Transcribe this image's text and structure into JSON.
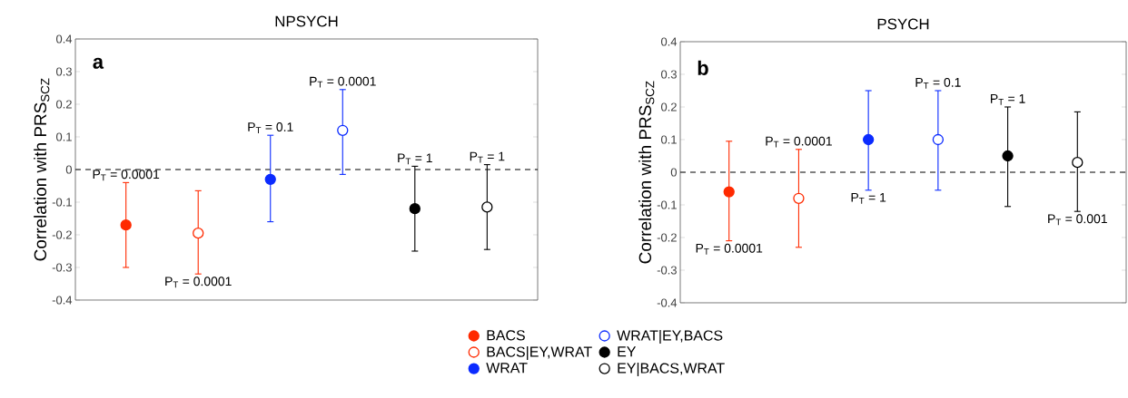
{
  "chart_data": [
    {
      "type": "scatter",
      "title": "NPSYCH",
      "ylabel": "Correlation with PRS$_{SCZ}$",
      "categories": [
        null,
        null,
        null,
        null,
        null,
        null
      ],
      "ylim": [
        -0.4,
        0.4
      ],
      "yticks": [
        -0.4,
        -0.3,
        -0.2,
        -0.1,
        0,
        0.1,
        0.2,
        0.3,
        0.4
      ],
      "marker": "circle",
      "legend": "bottom",
      "grid": false,
      "ref_lines": [
        {
          "axis": "y",
          "value": 0,
          "line_style": "dashed",
          "color": "#000000"
        }
      ],
      "annotations": [
        "a",
        "P$_{T}$ = 0.0001",
        "P$_{T}$ = 0.0001",
        "P$_{T}$ = 0.1",
        "P$_{T}$ = 0.0001",
        "P$_{T}$ = 1",
        "P$_{T}$ = 1"
      ],
      "series": [
        {
          "name": "BACS",
          "color": "#ff2a00",
          "values": [
            -0.17,
            null,
            null,
            null,
            null,
            null
          ],
          "errors": [
            [
              -0.3,
              -0.04
            ],
            null,
            null,
            null,
            null,
            null
          ]
        },
        {
          "name": "BACS|EY,WRAT",
          "color": "#ff2a00",
          "values": [
            null,
            -0.195,
            null,
            null,
            null,
            null
          ],
          "errors": [
            null,
            [
              -0.32,
              -0.065
            ],
            null,
            null,
            null,
            null
          ]
        },
        {
          "name": "WRAT",
          "color": "#0b2bff",
          "values": [
            null,
            null,
            -0.03,
            null,
            null,
            null
          ],
          "errors": [
            null,
            null,
            [
              -0.16,
              0.105
            ],
            null,
            null,
            null
          ]
        },
        {
          "name": "WRAT|EY,BACS",
          "color": "#0b2bff",
          "values": [
            null,
            null,
            null,
            0.12,
            null,
            null
          ],
          "errors": [
            null,
            null,
            null,
            [
              -0.015,
              0.245
            ],
            null,
            null
          ]
        },
        {
          "name": "EY",
          "color": "#000000",
          "values": [
            null,
            null,
            null,
            null,
            -0.12,
            null
          ],
          "errors": [
            null,
            null,
            null,
            null,
            [
              -0.25,
              0.01
            ],
            null
          ]
        },
        {
          "name": "EY|BACS,WRAT",
          "color": "#000000",
          "values": [
            null,
            null,
            null,
            null,
            null,
            -0.115
          ],
          "errors": [
            null,
            null,
            null,
            null,
            null,
            [
              -0.245,
              0.015
            ]
          ]
        }
      ]
    },
    {
      "type": "scatter",
      "title": "PSYCH",
      "ylabel": "Correlation with PRS$_{SCZ}$",
      "categories": [
        null,
        null,
        null,
        null,
        null,
        null
      ],
      "ylim": [
        -0.4,
        0.4
      ],
      "yticks": [
        -0.4,
        -0.3,
        -0.2,
        -0.1,
        0,
        0.1,
        0.2,
        0.3,
        0.4
      ],
      "marker": "circle",
      "grid": false,
      "ref_lines": [
        {
          "axis": "y",
          "value": 0,
          "line_style": "dashed",
          "color": "#000000"
        }
      ],
      "annotations": [
        "b",
        "P$_{T}$ = 0.0001",
        "P$_{T}$ = 0.0001",
        "P$_{T}$ = 1",
        "P$_{T}$ = 0.1",
        "P$_{T}$ = 1",
        "P$_{T}$ = 0.001"
      ],
      "series": [
        {
          "color": "#ff2a00",
          "values": [
            -0.06,
            null,
            null,
            null,
            null,
            null
          ],
          "errors": [
            [
              -0.21,
              0.095
            ],
            null,
            null,
            null,
            null,
            null
          ]
        },
        {
          "color": "#ff2a00",
          "values": [
            null,
            -0.08,
            null,
            null,
            null,
            null
          ],
          "errors": [
            null,
            [
              -0.23,
              0.07
            ],
            null,
            null,
            null,
            null
          ]
        },
        {
          "color": "#0b2bff",
          "values": [
            null,
            null,
            0.1,
            null,
            null,
            null
          ],
          "errors": [
            null,
            null,
            [
              -0.055,
              0.25
            ],
            null,
            null,
            null
          ]
        },
        {
          "color": "#0b2bff",
          "values": [
            null,
            null,
            null,
            0.1,
            null,
            null
          ],
          "errors": [
            null,
            null,
            null,
            [
              -0.055,
              0.25
            ],
            null,
            null
          ]
        },
        {
          "color": "#000000",
          "values": [
            null,
            null,
            null,
            null,
            0.05,
            null
          ],
          "errors": [
            null,
            null,
            null,
            null,
            [
              -0.105,
              0.2
            ],
            null
          ]
        },
        {
          "color": "#000000",
          "values": [
            null,
            null,
            null,
            null,
            null,
            0.03
          ],
          "errors": [
            null,
            null,
            null,
            null,
            null,
            [
              -0.12,
              0.185
            ]
          ]
        }
      ]
    }
  ]
}
